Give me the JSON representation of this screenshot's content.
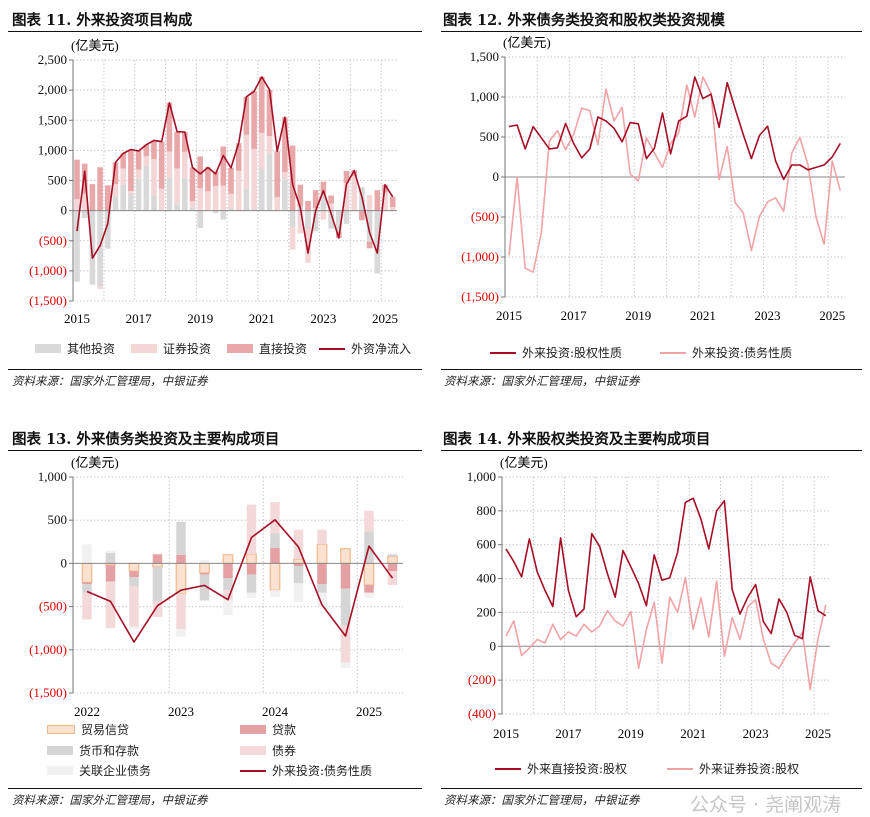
{
  "colors": {
    "dark_line": "#a50f26",
    "light_line": "#f2a3a6",
    "other": "#d9d9d9",
    "securities": "#f5d6d7",
    "direct": "#e8a8a9",
    "trade": "#fbe2d0",
    "trade_border": "#f3b98c",
    "loans": "#e4a0a2",
    "currency": "#d5d5d5",
    "bonds": "#f4d9db",
    "related": "#f1f1f1",
    "negative_label": "#e00000"
  },
  "chart_data": [
    {
      "type": "bar+line",
      "title": "图表 11. 外来投资项目构成",
      "unit": "(亿美元)",
      "source": "资料来源：国家外汇管理局，中银证券",
      "ylim": [
        -1500,
        2500
      ],
      "yticks": [
        2500,
        2000,
        1500,
        1000,
        500,
        0,
        -500,
        -1000,
        -1500
      ],
      "ytick_labels": [
        "2,500",
        "2,000",
        "1,500",
        "1,000",
        "500",
        "0",
        "(500)",
        "(1,000)",
        "(1,500)"
      ],
      "xtick_labels": [
        "2015",
        "2017",
        "2019",
        "2021",
        "2023",
        "2025"
      ],
      "grid": true,
      "legend": "bottom",
      "x": "quarterly 2015Q1–2025Q2",
      "series": [
        {
          "name": "其他投资",
          "kind": "stacked-bar",
          "values": [
            -1180,
            -125,
            -1230,
            -1260,
            -625,
            240,
            430,
            285,
            530,
            745,
            255,
            15,
            540,
            100,
            545,
            55,
            -290,
            -5,
            -40,
            -150,
            40,
            10,
            360,
            30,
            690,
            945,
            0,
            520,
            -275,
            70,
            -305,
            -340,
            280,
            -300,
            -355,
            -220,
            -5,
            390,
            -515,
            -1045,
            0,
            0
          ]
        },
        {
          "name": "证券投资",
          "kind": "stacked-bar",
          "values": [
            190,
            280,
            0,
            -40,
            -10,
            200,
            270,
            40,
            150,
            160,
            600,
            350,
            440,
            600,
            430,
            100,
            370,
            320,
            410,
            415,
            240,
            650,
            900,
            990,
            600,
            290,
            225,
            120,
            -370,
            -380,
            -560,
            40,
            -150,
            120,
            0,
            460,
            570,
            0,
            260,
            0,
            300,
            60
          ]
        },
        {
          "name": "直接投资",
          "kind": "stacked-bar",
          "values": [
            655,
            500,
            440,
            720,
            420,
            360,
            250,
            690,
            310,
            190,
            310,
            780,
            810,
            610,
            330,
            560,
            530,
            400,
            240,
            650,
            430,
            460,
            630,
            960,
            930,
            770,
            760,
            910,
            1080,
            360,
            160,
            300,
            200,
            130,
            -100,
            200,
            100,
            -160,
            -110,
            340,
            130,
            170
          ]
        },
        {
          "name": "外资净流入",
          "kind": "line",
          "values": [
            -340,
            655,
            -790,
            -580,
            -215,
            800,
            950,
            1015,
            990,
            1095,
            1165,
            1145,
            1790,
            1310,
            1305,
            715,
            610,
            715,
            610,
            915,
            710,
            1120,
            1890,
            1980,
            2220,
            2005,
            985,
            1550,
            435,
            50,
            -705,
            0,
            330,
            -50,
            -455,
            440,
            665,
            230,
            -365,
            -705,
            430,
            230
          ]
        }
      ]
    },
    {
      "type": "line",
      "title": "图表 12. 外来债务类投资和股权类投资规模",
      "unit": "(亿美元)",
      "source": "资料来源：国家外汇管理局，中银证券",
      "ylim": [
        -1500,
        1500
      ],
      "yticks": [
        1500,
        1000,
        500,
        0,
        -500,
        -1000,
        -1500
      ],
      "ytick_labels": [
        "1,500",
        "1,000",
        "500",
        "0",
        "(500)",
        "(1,000)",
        "(1,500)"
      ],
      "xtick_labels": [
        "2015",
        "2017",
        "2019",
        "2021",
        "2023",
        "2025"
      ],
      "grid": true,
      "legend": "bottom",
      "series": [
        {
          "name": "外来投资:股权性质",
          "values": [
            630,
            650,
            350,
            630,
            490,
            350,
            365,
            670,
            420,
            240,
            350,
            750,
            700,
            610,
            440,
            680,
            665,
            230,
            360,
            800,
            290,
            700,
            760,
            1250,
            980,
            1035,
            620,
            1180,
            850,
            530,
            230,
            520,
            635,
            200,
            -30,
            150,
            150,
            90,
            120,
            150,
            250,
            420
          ]
        },
        {
          "name": "外来投资:债务性质",
          "values": [
            -980,
            0,
            -1140,
            -1190,
            -700,
            450,
            580,
            340,
            530,
            860,
            830,
            400,
            1100,
            700,
            870,
            40,
            -50,
            490,
            300,
            120,
            420,
            550,
            1150,
            750,
            1250,
            1050,
            -30,
            380,
            -320,
            -450,
            -920,
            -490,
            -310,
            -260,
            -430,
            300,
            495,
            150,
            -500,
            -840,
            200,
            -170
          ]
        }
      ]
    },
    {
      "type": "bar+line",
      "title": "图表 13. 外来债务类投资及主要构成项目",
      "unit": "(亿美元)",
      "source": "资料来源：国家外汇管理局，中银证券",
      "ylim": [
        -1500,
        1000
      ],
      "yticks": [
        1000,
        500,
        0,
        -500,
        -1000,
        -1500
      ],
      "ytick_labels": [
        "1,000",
        "500",
        "0",
        "(500)",
        "(1,000)",
        "(1,500)"
      ],
      "xtick_labels": [
        "2022",
        "2023",
        "2024",
        "2025"
      ],
      "grid": true,
      "legend": "bottom",
      "series": [
        {
          "name": "贸易信贷",
          "kind": "stacked-bar",
          "values": [
            -220,
            -20,
            -90,
            -40,
            -350,
            -110,
            100,
            110,
            -310,
            50,
            220,
            170,
            -250,
            80
          ]
        },
        {
          "name": "贷款",
          "kind": "stacked-bar",
          "values": [
            -20,
            -190,
            -70,
            110,
            100,
            -20,
            -170,
            -130,
            180,
            -30,
            -240,
            -290,
            -90,
            -90
          ]
        },
        {
          "name": "货币和存款",
          "kind": "stacked-bar",
          "values": [
            -100,
            120,
            -110,
            -400,
            380,
            -300,
            -140,
            -210,
            170,
            -200,
            -100,
            -430,
            370,
            30
          ]
        },
        {
          "name": "债券",
          "kind": "stacked-bar",
          "values": [
            -310,
            -540,
            -460,
            -180,
            -410,
            0,
            -110,
            570,
            360,
            340,
            170,
            -430,
            240,
            -160
          ]
        },
        {
          "name": "关联企业债务",
          "kind": "stacked-bar",
          "values": [
            220,
            30,
            -30,
            0,
            -90,
            40,
            -180,
            -60,
            -80,
            -220,
            -160,
            -60,
            -60,
            0
          ]
        },
        {
          "name": "外来投资:债务性质",
          "kind": "line",
          "values": [
            -325,
            -440,
            -910,
            -490,
            -310,
            -255,
            -420,
            300,
            505,
            190,
            -480,
            -840,
            200,
            -170
          ]
        }
      ]
    },
    {
      "type": "line",
      "title": "图表 14. 外来股权类投资及主要构成项目",
      "unit": "(亿美元)",
      "source": "资料来源：国家外汇管理局，中银证券",
      "ylim": [
        -400,
        1000
      ],
      "yticks": [
        1000,
        800,
        600,
        400,
        200,
        0,
        -200,
        -400
      ],
      "ytick_labels": [
        "1,000",
        "800",
        "600",
        "400",
        "200",
        "0",
        "(200)",
        "(400)"
      ],
      "xtick_labels": [
        "2015",
        "2017",
        "2019",
        "2021",
        "2023",
        "2025"
      ],
      "grid": true,
      "legend": "bottom",
      "series": [
        {
          "name": "外来直接投资:股权",
          "values": [
            575,
            500,
            410,
            635,
            440,
            330,
            235,
            640,
            330,
            175,
            220,
            665,
            590,
            430,
            290,
            565,
            470,
            370,
            240,
            540,
            390,
            405,
            555,
            850,
            875,
            750,
            575,
            800,
            860,
            335,
            190,
            290,
            365,
            145,
            75,
            280,
            200,
            65,
            45,
            410,
            210,
            180
          ]
        },
        {
          "name": "外来证券投资:股权",
          "values": [
            60,
            150,
            -55,
            -10,
            40,
            20,
            130,
            40,
            85,
            60,
            130,
            85,
            120,
            210,
            150,
            120,
            205,
            -130,
            100,
            260,
            -100,
            290,
            200,
            405,
            100,
            285,
            55,
            385,
            -60,
            170,
            40,
            235,
            275,
            40,
            -100,
            -130,
            -50,
            20,
            80,
            -255,
            45,
            245
          ]
        }
      ]
    }
  ],
  "watermark": "公众号 · 尧阐观涛"
}
